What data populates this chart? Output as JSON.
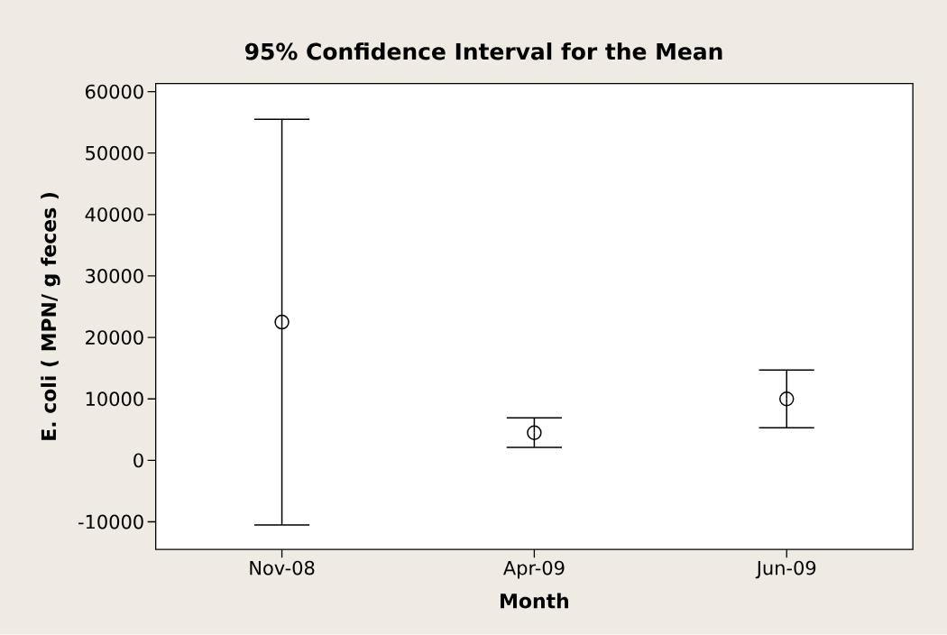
{
  "chart_data": {
    "type": "scatter",
    "title": "95% Confidence Interval for the Mean",
    "xlabel": "Month",
    "ylabel": "E. coli ( MPN/ g feces )",
    "categories": [
      "Nov-08",
      "Apr-09",
      "Jun-09"
    ],
    "values": [
      22500,
      4500,
      10000
    ],
    "errors": [
      33000,
      2400,
      4700
    ],
    "color": "#000000",
    "marker": "circle",
    "ylim": [
      -14500,
      61300
    ],
    "yticks": [
      -10000,
      0,
      10000,
      20000,
      30000,
      40000,
      50000,
      60000
    ]
  }
}
